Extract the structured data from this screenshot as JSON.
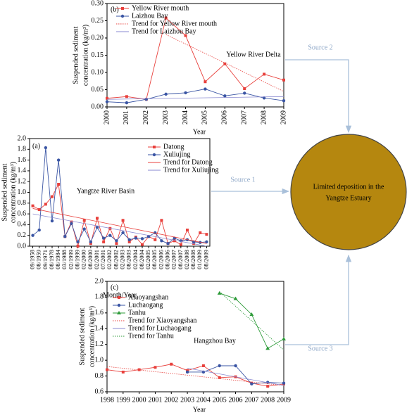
{
  "chart_data": [
    {
      "type": "line",
      "panel_label": "(b)",
      "annotation": "Yellow River Delta",
      "xlabel": "Year",
      "ylabel": [
        "Suspended sediment",
        "concentration (kg/m³)"
      ],
      "x": [
        2000,
        2001,
        2002,
        2003,
        2004,
        2005,
        2006,
        2007,
        2008,
        2009
      ],
      "xlim": [
        2000,
        2009
      ],
      "xticks": [
        2000,
        2001,
        2002,
        2003,
        2004,
        2005,
        2006,
        2007,
        2008,
        2009
      ],
      "ylim": [
        0,
        0.3
      ],
      "yticks": [
        {
          "value": 0,
          "label": "0.00"
        },
        0.05,
        {
          "value": 0.1,
          "label": "0.10"
        },
        0.15,
        {
          "value": 0.2,
          "label": "0.20"
        },
        0.25,
        {
          "value": 0.3,
          "label": "0.30"
        }
      ],
      "legend": "upper left",
      "series": [
        {
          "name": "Yellow River mouth",
          "color": "#e8403c",
          "marker": "square",
          "values": [
            0.025,
            0.03,
            0.022,
            0.258,
            0.207,
            0.073,
            0.125,
            0.053,
            0.095,
            0.078
          ]
        },
        {
          "name": "Laizhou Bay",
          "color": "#3a55a4",
          "marker": "circle",
          "values": [
            0.015,
            0.012,
            0.022,
            0.037,
            0.041,
            0.052,
            0.032,
            0.04,
            0.026,
            0.018
          ]
        },
        {
          "name": "Trend for Yellow River mouth",
          "color": "#e8403c",
          "style": "dotted",
          "x": [
            2003,
            2009
          ],
          "values": [
            0.21,
            0.045
          ]
        },
        {
          "name": "Trend for Laizhou Bay",
          "color": "#8a8ad0",
          "style": "solid",
          "x": [
            2000,
            2009
          ],
          "values": [
            0.022,
            0.03
          ]
        }
      ]
    },
    {
      "type": "line",
      "panel_label": "(a)",
      "annotation": "Yangtze River Basin",
      "xlabel": "Month/Year",
      "ylabel": [
        "Suspended sediment",
        "concentration (kg/m³)"
      ],
      "categories": [
        "09/1958",
        "08/1959",
        "09/1971",
        "08/1978",
        "08/1984",
        "03/1988",
        "02/1999",
        "08/1999",
        "02/2000",
        "08/2000",
        "02/2001",
        "07/2001",
        "02/2002",
        "08/2002",
        "02/2003",
        "08/2003",
        "02/2004",
        "08/2004",
        "02/2005",
        "08/2005",
        "02/2006",
        "08/2006",
        "02/2007",
        "08/2007",
        "02/2008",
        "08/2008",
        "01/2009",
        "08/2009"
      ],
      "ylim": [
        0,
        2
      ],
      "yticks": [
        {
          "value": 0,
          "label": "0.0"
        },
        0.2,
        0.4,
        0.6,
        0.8,
        {
          "value": 1,
          "label": "1.0"
        },
        1.2,
        1.4,
        1.6,
        1.8,
        {
          "value": 2,
          "label": "2.0"
        }
      ],
      "legend": "upper right",
      "series": [
        {
          "name": "Datong",
          "color": "#e8403c",
          "marker": "square",
          "values": [
            0.75,
            0.68,
            0.78,
            0.92,
            1.15,
            0.18,
            0.45,
            0.0,
            0.48,
            0.05,
            0.52,
            0.08,
            0.33,
            0.05,
            0.48,
            0.08,
            0.17,
            0.03,
            0.18,
            0.12,
            0.48,
            0.05,
            0.1,
            0.03,
            0.3,
            0.05,
            0.25,
            0.22
          ]
        },
        {
          "name": "Xuliujing",
          "color": "#3a55a4",
          "marker": "circle",
          "values": [
            0.2,
            0.3,
            1.83,
            0.47,
            1.6,
            0.18,
            0.42,
            0.08,
            0.32,
            0.08,
            0.35,
            0.15,
            0.2,
            0.1,
            0.25,
            0.12,
            0.15,
            0.14,
            0.18,
            0.25,
            0.1,
            0.05,
            0.15,
            0.1,
            0.12,
            0.08,
            0.07,
            0.08
          ]
        },
        {
          "name": "Trend for Datong",
          "color": "#e8403c",
          "style": "solid",
          "x": [
            "09/1958",
            "08/2009"
          ],
          "values": [
            0.7,
            0.05
          ]
        },
        {
          "name": "Trend for Xuliujing",
          "color": "#8a8ad0",
          "style": "solid",
          "x": [
            "09/1958",
            "08/2009"
          ],
          "values": [
            0.6,
            0.0
          ]
        }
      ]
    },
    {
      "type": "line",
      "panel_label": "(c)",
      "annotation": "Hangzhou Bay",
      "xlabel": "Year",
      "ylabel": [
        "Suspended sediment",
        "concentration (kg/m³)"
      ],
      "x": [
        1998,
        1999,
        2000,
        2001,
        2002,
        2003,
        2004,
        2005,
        2006,
        2007,
        2008,
        2009
      ],
      "xlim": [
        1998,
        2009
      ],
      "xticks": [
        1998,
        1999,
        2000,
        2001,
        2002,
        2003,
        2004,
        2005,
        2006,
        2007,
        2008,
        2009
      ],
      "ylim": [
        0.6,
        2
      ],
      "yticks": [
        0.6,
        0.8,
        {
          "value": 1,
          "label": "1.0"
        },
        1.2,
        1.4,
        1.6,
        1.8,
        {
          "value": 2,
          "label": "2.0"
        }
      ],
      "legend": "upper left",
      "series": [
        {
          "name": "Xiaoyangshan",
          "color": "#e8403c",
          "marker": "square",
          "values": [
            0.88,
            0.85,
            0.88,
            0.91,
            0.95,
            0.87,
            0.93,
            0.78,
            0.79,
            0.71,
            0.67,
            0.7
          ]
        },
        {
          "name": "Luchaogang",
          "color": "#3a55a4",
          "marker": "circle",
          "values": [
            null,
            null,
            null,
            null,
            null,
            0.85,
            0.85,
            0.93,
            0.93,
            0.7,
            0.72,
            0.71
          ]
        },
        {
          "name": "Tanhu",
          "color": "#2e9b3a",
          "marker": "triangle",
          "values": [
            null,
            null,
            null,
            null,
            null,
            null,
            null,
            1.85,
            1.78,
            1.58,
            1.15,
            1.27
          ]
        },
        {
          "name": "Trend for Xiaoyangshan",
          "color": "#e8403c",
          "style": "dotted",
          "x": [
            1998,
            2009
          ],
          "values": [
            0.92,
            0.68
          ]
        },
        {
          "name": "Trend for Luchaogang",
          "color": "#8a8ad0",
          "style": "solid",
          "x": [
            2003,
            2009
          ],
          "values": [
            0.9,
            0.68
          ]
        },
        {
          "name": "Trend for Tanhu",
          "color": "#2e9b3a",
          "style": "dotted",
          "x": [
            2005,
            2009
          ],
          "values": [
            1.87,
            1.13
          ]
        }
      ]
    }
  ],
  "diagram": {
    "center_label": [
      "Limited deposition in the",
      "Yangtze Estuary"
    ],
    "sources": [
      "Source 2",
      "Source 1",
      "Source 3"
    ]
  }
}
